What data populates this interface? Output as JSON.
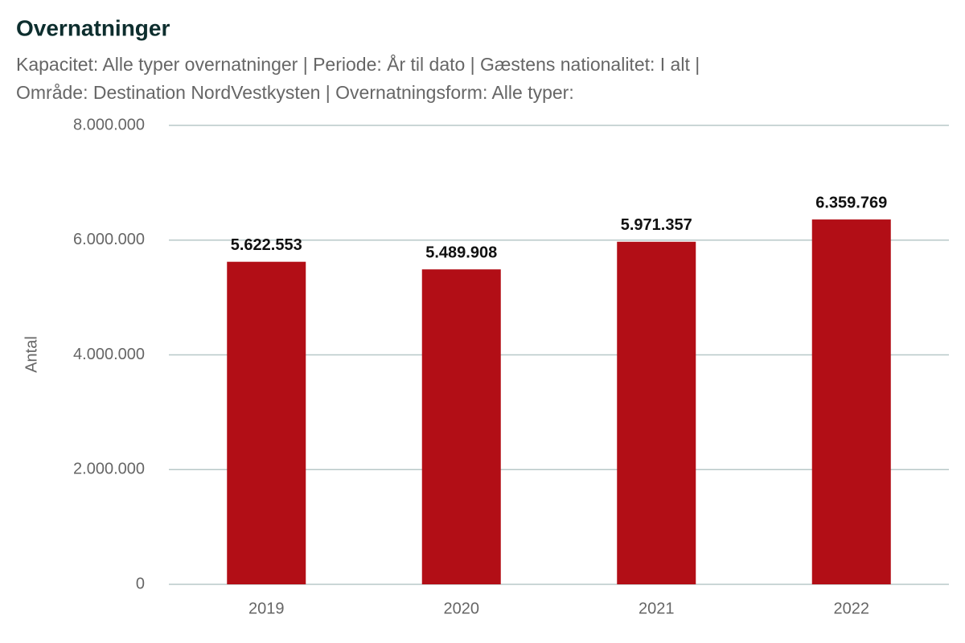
{
  "chart_data": {
    "type": "bar",
    "title": "Overnatninger",
    "subtitle": [
      "Kapacitet: Alle typer overnatninger | Periode: År til dato | Gæstens nationalitet: I alt |",
      "Område: Destination NordVestkysten | Overnatningsform: Alle typer:"
    ],
    "y_label": "Antal",
    "categories": [
      "2019",
      "2020",
      "2021",
      "2022"
    ],
    "values": [
      5622553,
      5489908,
      5971357,
      6359769
    ],
    "value_labels": [
      "5.622.553",
      "5.489.908",
      "5.971.357",
      "6.359.769"
    ],
    "color": "#b20e16",
    "ylim": [
      0,
      8000000
    ],
    "yticks": [
      0,
      {
        "value": 2000000,
        "label": "2.000.000"
      },
      {
        "value": 4000000,
        "label": "4.000.000"
      },
      {
        "value": 6000000,
        "label": "6.000.000"
      },
      {
        "value": 8000000,
        "label": "8.000.000"
      }
    ],
    "grid": true
  }
}
